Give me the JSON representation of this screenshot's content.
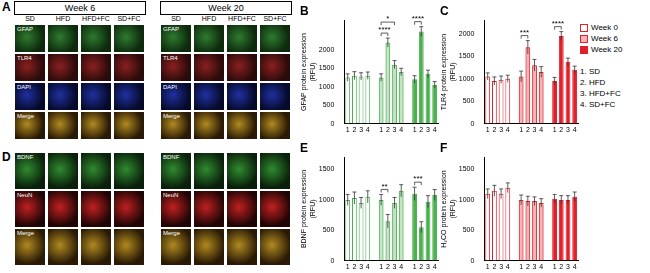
{
  "figure": {
    "image_panels": [
      {
        "letter": "A",
        "weeks": [
          "Week 6",
          "Week 20"
        ],
        "columns": [
          "SD",
          "HFD",
          "HFD+FC",
          "SD+FC"
        ],
        "rows": [
          "GFAP",
          "TLR4",
          "DAPI",
          "Merge"
        ]
      },
      {
        "letter": "D",
        "weeks": [
          "Week 6",
          "Week 20"
        ],
        "columns": [
          "SD",
          "HFD",
          "HFD+FC",
          "SD+FC"
        ],
        "rows": [
          "BDNF",
          "NeuN",
          "Merge"
        ]
      }
    ],
    "legend": {
      "series": [
        "Week 0",
        "Week 6",
        "Week 20"
      ],
      "color": "#e0202a",
      "groups": [
        "1. SD",
        "2. HFD",
        "3. HFD+FC",
        "4. SD+FC"
      ]
    }
  },
  "chart_data": [
    {
      "type": "bar",
      "title": "B",
      "y_label": [
        "GFAP protein expression",
        "(RFU)"
      ],
      "categories": [
        "1",
        "2",
        "3",
        "4",
        null,
        "1",
        "2",
        "3",
        "4",
        null,
        "1",
        "2",
        "3",
        "4"
      ],
      "series": [
        {
          "name": "Week 0",
          "color": "#4caf50",
          "values": [
            1250,
            1300,
            1280,
            1300,
            null,
            null,
            null,
            null,
            null,
            null,
            null,
            null,
            null,
            null
          ],
          "errors": [
            100,
            110,
            100,
            100,
            null,
            null,
            null,
            null,
            null,
            null,
            null,
            null,
            null,
            null
          ]
        },
        {
          "name": "Week 6",
          "color": "#4caf50",
          "values": [
            null,
            null,
            null,
            null,
            null,
            1250,
            2200,
            1600,
            1400,
            null,
            null,
            null,
            null,
            null
          ],
          "errors": [
            null,
            null,
            null,
            null,
            null,
            100,
            120,
            110,
            100,
            null,
            null,
            null,
            null,
            null
          ]
        },
        {
          "name": "Week 20",
          "color": "#4caf50",
          "values": [
            null,
            null,
            null,
            null,
            null,
            null,
            null,
            null,
            null,
            null,
            1200,
            2500,
            1350,
            1050
          ],
          "errors": [
            null,
            null,
            null,
            null,
            null,
            null,
            null,
            null,
            null,
            null,
            100,
            130,
            100,
            90
          ]
        }
      ],
      "annotations": [
        {
          "from": 5,
          "to": 6,
          "text": "****"
        },
        {
          "from": 5,
          "to": 7,
          "text": "*"
        },
        {
          "from": 10,
          "to": 11,
          "text": "****"
        }
      ],
      "ylim": [
        0,
        2800
      ],
      "yticks": [
        0,
        500,
        1000,
        1500,
        2000
      ],
      "grid": false
    },
    {
      "type": "bar",
      "title": "C",
      "y_label": [
        "TLR4 protein expression",
        "(RFU)"
      ],
      "categories": [
        "1",
        "2",
        "3",
        "4",
        null,
        "1",
        "2",
        "3",
        "4",
        null,
        "1",
        "2",
        "3",
        "4"
      ],
      "series": [
        {
          "name": "Week 0",
          "color": "#e0202a",
          "values": [
            1050,
            950,
            980,
            1000,
            null,
            null,
            null,
            null,
            null,
            null,
            null,
            null,
            null,
            null
          ],
          "errors": [
            80,
            90,
            80,
            80,
            null,
            null,
            null,
            null,
            null,
            null,
            null,
            null,
            null,
            null
          ]
        },
        {
          "name": "Week 6",
          "color": "#e0202a",
          "values": [
            null,
            null,
            null,
            null,
            null,
            1050,
            1700,
            1300,
            1150,
            null,
            null,
            null,
            null,
            null
          ],
          "errors": [
            null,
            null,
            null,
            null,
            null,
            120,
            150,
            130,
            120,
            null,
            null,
            null,
            null,
            null
          ]
        },
        {
          "name": "Week 20",
          "color": "#e0202a",
          "values": [
            null,
            null,
            null,
            null,
            null,
            null,
            null,
            null,
            null,
            null,
            950,
            1950,
            1380,
            1200
          ],
          "errors": [
            null,
            null,
            null,
            null,
            null,
            null,
            null,
            null,
            null,
            null,
            80,
            100,
            80,
            80
          ]
        }
      ],
      "annotations": [
        {
          "from": 5,
          "to": 6,
          "text": "***"
        },
        {
          "from": 10,
          "to": 11,
          "text": "****"
        }
      ],
      "ylim": [
        0,
        2300
      ],
      "yticks": [
        0,
        500,
        1000,
        1500,
        2000
      ],
      "grid": false
    },
    {
      "type": "bar",
      "title": "E",
      "y_label": [
        "BDNF protein expression",
        "(RFU)"
      ],
      "categories": [
        "1",
        "2",
        "3",
        "4",
        null,
        "1",
        "2",
        "3",
        "4",
        null,
        "1",
        "2",
        "3",
        "4"
      ],
      "series": [
        {
          "name": "Week 0",
          "color": "#4caf50",
          "values": [
            1000,
            1030,
            950,
            1050,
            null,
            null,
            null,
            null,
            null,
            null,
            null,
            null,
            null,
            null
          ],
          "errors": [
            90,
            100,
            90,
            100,
            null,
            null,
            null,
            null,
            null,
            null,
            null,
            null,
            null,
            null
          ]
        },
        {
          "name": "Week 6",
          "color": "#4caf50",
          "values": [
            null,
            null,
            null,
            null,
            null,
            1000,
            650,
            950,
            1150,
            null,
            null,
            null,
            null,
            null
          ],
          "errors": [
            null,
            null,
            null,
            null,
            null,
            90,
            110,
            90,
            100,
            null,
            null,
            null,
            null,
            null
          ]
        },
        {
          "name": "Week 20",
          "color": "#4caf50",
          "values": [
            null,
            null,
            null,
            null,
            null,
            null,
            null,
            null,
            null,
            null,
            1100,
            550,
            970,
            1080
          ],
          "errors": [
            null,
            null,
            null,
            null,
            null,
            null,
            null,
            null,
            null,
            null,
            110,
            90,
            100,
            90
          ]
        }
      ],
      "annotations": [
        {
          "from": 5,
          "to": 6,
          "text": "**"
        },
        {
          "from": 10,
          "to": 11,
          "text": "***"
        }
      ],
      "ylim": [
        0,
        1700
      ],
      "yticks": [
        0,
        500,
        1000,
        1500
      ],
      "grid": false
    },
    {
      "type": "bar",
      "title": "F",
      "y_label": [
        "H₂CO protein expression",
        "(RFU)"
      ],
      "categories": [
        "1",
        "2",
        "3",
        "4",
        null,
        "1",
        "2",
        "3",
        "4",
        null,
        "1",
        "2",
        "3",
        "4"
      ],
      "series": [
        {
          "name": "Week 0",
          "color": "#e0202a",
          "values": [
            1100,
            1150,
            1100,
            1200,
            null,
            null,
            null,
            null,
            null,
            null,
            null,
            null,
            null,
            null
          ],
          "errors": [
            80,
            90,
            80,
            80,
            null,
            null,
            null,
            null,
            null,
            null,
            null,
            null,
            null,
            null
          ]
        },
        {
          "name": "Week 6",
          "color": "#e0202a",
          "values": [
            null,
            null,
            null,
            null,
            null,
            1000,
            980,
            980,
            950,
            null,
            null,
            null,
            null,
            null
          ],
          "errors": [
            null,
            null,
            null,
            null,
            null,
            80,
            80,
            70,
            70,
            null,
            null,
            null,
            null,
            null
          ]
        },
        {
          "name": "Week 20",
          "color": "#e0202a",
          "values": [
            null,
            null,
            null,
            null,
            null,
            null,
            null,
            null,
            null,
            null,
            1020,
            1000,
            1000,
            1050
          ],
          "errors": [
            null,
            null,
            null,
            null,
            null,
            null,
            null,
            null,
            null,
            null,
            70,
            70,
            70,
            80
          ]
        }
      ],
      "annotations": [],
      "ylim": [
        0,
        1700
      ],
      "yticks": [
        0,
        500,
        1000,
        1500
      ],
      "grid": false
    }
  ]
}
